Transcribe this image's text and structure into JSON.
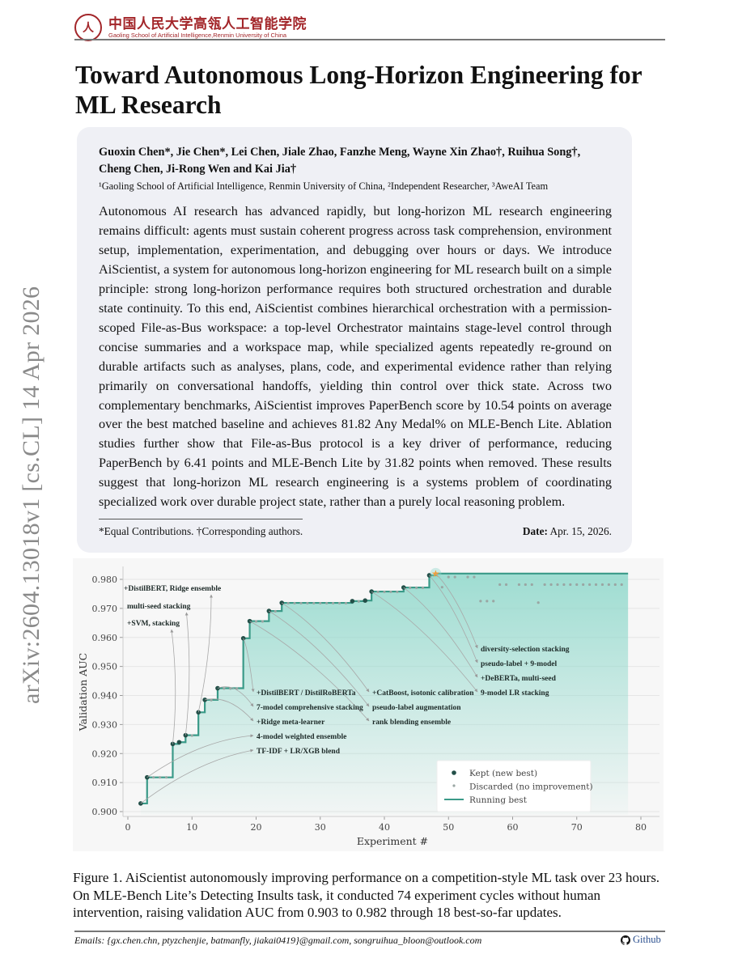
{
  "header": {
    "logo_cn": "中国人民大学高瓴人工智能学院",
    "logo_en": "Gaoling School of Artificial Intelligence,Renmin University of China"
  },
  "sidebar_arxiv": "arXiv:2604.13018v1  [cs.CL]  14 Apr 2026",
  "title": "Toward Autonomous Long-Horizon Engineering for ML Research",
  "authors": "Guoxin Chen*, Jie Chen*, Lei Chen, Jiale Zhao, Fanzhe Meng, Wayne Xin Zhao†, Ruihua Song†, Cheng Chen, Ji-Rong Wen and Kai Jia†",
  "affiliations": "¹Gaoling School of Artificial Intelligence, Renmin University of China, ²Independent Researcher, ³AweAI Team",
  "abstract": "Autonomous AI research has advanced rapidly, but long-horizon ML research engineering remains difficult: agents must sustain coherent progress across task comprehension, environment setup, implementation, experimentation, and debugging over hours or days. We introduce AiScientist, a system for autonomous long-horizon engineering for ML research built on a simple principle: strong long-horizon performance requires both structured orchestration and durable state continuity. To this end, AiScientist combines hierarchical orchestration with a permission-scoped File-as-Bus workspace: a top-level Orchestrator maintains stage-level control through concise summaries and a workspace map, while specialized agents repeatedly re-ground on durable artifacts such as analyses, plans, code, and experimental evidence rather than relying primarily on conversational handoffs, yielding thin control over thick state. Across two complementary benchmarks, AiScientist improves PaperBench score by 10.54 points on average over the best matched baseline and achieves 81.82 Any Medal% on MLE-Bench Lite. Ablation studies further show that File-as-Bus protocol is a key driver of performance, reducing PaperBench by 6.41 points and MLE-Bench Lite by 31.82 points when removed. These results suggest that long-horizon ML research engineering is a systems problem of coordinating specialized work over durable project state, rather than a purely local reasoning problem.",
  "footnote": "*Equal Contributions. †Corresponding authors.",
  "date_label": "Date:",
  "date_value": "Apr. 15, 2026.",
  "caption": "Figure 1. AiScientist autonomously improving performance on a competition-style ML task over 23 hours. On MLE-Bench Lite’s Detecting Insults task, it conducted 74 experiment cycles without human intervention, raising validation AUC from 0.903 to 0.982 through 18 best-so-far updates.",
  "footer": {
    "emails": "Emails: {gx.chen.chn, ptyzchenjie, batmanfly, jiakai0419}@gmail.com, songruihua_bloon@outlook.com",
    "github_label": "Github",
    "github_icon": "github-icon"
  },
  "chart_data": {
    "type": "line",
    "xlabel": "Experiment #",
    "ylabel": "Validation AUC",
    "xlim": [
      -1,
      83
    ],
    "ylim": [
      0.899,
      0.983
    ],
    "xticks": [
      0,
      10,
      20,
      30,
      40,
      50,
      60,
      70,
      80
    ],
    "yticks": [
      "0.900",
      "0.910",
      "0.920",
      "0.930",
      "0.940",
      "0.950",
      "0.960",
      "0.970",
      "0.980"
    ],
    "grid": "horizontal",
    "colors": {
      "kept": "#234f48",
      "discarded": "#9aa6a3",
      "running_best": "#3a9a88",
      "fill": "#8fd8cb",
      "star": "#f39c34"
    },
    "kept": [
      {
        "x": 2,
        "y": 0.9028
      },
      {
        "x": 3,
        "y": 0.9118
      },
      {
        "x": 7,
        "y": 0.9233
      },
      {
        "x": 8,
        "y": 0.9239
      },
      {
        "x": 9,
        "y": 0.9263
      },
      {
        "x": 11,
        "y": 0.9342
      },
      {
        "x": 12,
        "y": 0.9385
      },
      {
        "x": 14,
        "y": 0.9425
      },
      {
        "x": 18,
        "y": 0.9597
      },
      {
        "x": 19,
        "y": 0.9656
      },
      {
        "x": 22,
        "y": 0.9691
      },
      {
        "x": 24,
        "y": 0.9719
      },
      {
        "x": 35,
        "y": 0.9725
      },
      {
        "x": 37,
        "y": 0.9727
      },
      {
        "x": 38,
        "y": 0.9758
      },
      {
        "x": 43,
        "y": 0.9772
      },
      {
        "x": 47,
        "y": 0.9814
      }
    ],
    "best": {
      "x": 48,
      "y": 0.982
    },
    "running_best_end_x": 78,
    "discarded": [
      {
        "x": 4,
        "y": 0.9118
      },
      {
        "x": 5,
        "y": 0.9118
      },
      {
        "x": 6,
        "y": 0.9118
      },
      {
        "x": 10,
        "y": 0.9262
      },
      {
        "x": 13,
        "y": 0.9384
      },
      {
        "x": 15,
        "y": 0.9424
      },
      {
        "x": 16,
        "y": 0.9424
      },
      {
        "x": 17,
        "y": 0.9424
      },
      {
        "x": 20,
        "y": 0.9655
      },
      {
        "x": 21,
        "y": 0.9655
      },
      {
        "x": 23,
        "y": 0.969
      },
      {
        "x": 25,
        "y": 0.9718
      },
      {
        "x": 26,
        "y": 0.9718
      },
      {
        "x": 27,
        "y": 0.9718
      },
      {
        "x": 28,
        "y": 0.9718
      },
      {
        "x": 29,
        "y": 0.9718
      },
      {
        "x": 30,
        "y": 0.9718
      },
      {
        "x": 31,
        "y": 0.9718
      },
      {
        "x": 32,
        "y": 0.9718
      },
      {
        "x": 33,
        "y": 0.9718
      },
      {
        "x": 34,
        "y": 0.9718
      },
      {
        "x": 36,
        "y": 0.9724
      },
      {
        "x": 39,
        "y": 0.9757
      },
      {
        "x": 40,
        "y": 0.9757
      },
      {
        "x": 41,
        "y": 0.9757
      },
      {
        "x": 42,
        "y": 0.9757
      },
      {
        "x": 44,
        "y": 0.9771
      },
      {
        "x": 45,
        "y": 0.9771
      },
      {
        "x": 46,
        "y": 0.9771
      },
      {
        "x": 49,
        "y": 0.9773
      },
      {
        "x": 50,
        "y": 0.9808
      },
      {
        "x": 51,
        "y": 0.9808
      },
      {
        "x": 53,
        "y": 0.9808
      },
      {
        "x": 54,
        "y": 0.9808
      },
      {
        "x": 55,
        "y": 0.9725
      },
      {
        "x": 56,
        "y": 0.9725
      },
      {
        "x": 57,
        "y": 0.9725
      },
      {
        "x": 58,
        "y": 0.9782
      },
      {
        "x": 59,
        "y": 0.9782
      },
      {
        "x": 61,
        "y": 0.9782
      },
      {
        "x": 62,
        "y": 0.9782
      },
      {
        "x": 63,
        "y": 0.9782
      },
      {
        "x": 64,
        "y": 0.972
      },
      {
        "x": 65,
        "y": 0.9782
      },
      {
        "x": 66,
        "y": 0.9782
      },
      {
        "x": 67,
        "y": 0.9782
      },
      {
        "x": 68,
        "y": 0.9782
      },
      {
        "x": 69,
        "y": 0.9782
      },
      {
        "x": 70,
        "y": 0.9782
      },
      {
        "x": 71,
        "y": 0.9782
      },
      {
        "x": 72,
        "y": 0.9782
      },
      {
        "x": 73,
        "y": 0.9782
      },
      {
        "x": 74,
        "y": 0.9782
      },
      {
        "x": 75,
        "y": 0.9782
      },
      {
        "x": 76,
        "y": 0.9782
      },
      {
        "x": 77,
        "y": 0.9782
      }
    ],
    "annotations": [
      {
        "text": "+DistilBERT, Ridge ensemble",
        "x": 11
      },
      {
        "text": "multi-seed stacking",
        "x": 9
      },
      {
        "text": "+SVM, stacking",
        "x": 7
      },
      {
        "text": "+DistilBERT / DistilRoBERTa",
        "x": 18
      },
      {
        "text": "7-model comprehensive stacking",
        "x": 14
      },
      {
        "text": "+Ridge meta-learner",
        "x": 12
      },
      {
        "text": "4-model weighted ensemble",
        "x": 3
      },
      {
        "text": "TF-IDF + LR/XGB blend",
        "x": 2
      },
      {
        "text": "+CatBoost, isotonic calibration",
        "x": 24
      },
      {
        "text": "pseudo-label augmentation",
        "x": 22
      },
      {
        "text": "rank blending ensemble",
        "x": 19
      },
      {
        "text": "diversity-selection stacking",
        "x": 48
      },
      {
        "text": "pseudo-label + 9-model",
        "x": 47
      },
      {
        "text": "+DeBERTa, multi-seed",
        "x": 43
      },
      {
        "text": "9-model LR stacking",
        "x": 38
      }
    ],
    "legend": {
      "placement": "lower-right",
      "entries": [
        "Kept (new best)",
        "Discarded (no improvement)",
        "Running best"
      ]
    }
  }
}
